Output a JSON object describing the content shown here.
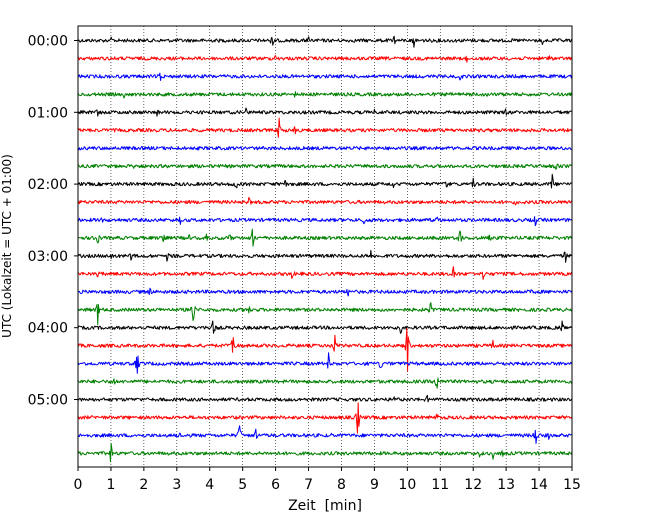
{
  "chart_data": {
    "type": "line",
    "title": "",
    "xlabel": "Zeit  [min]",
    "ylabel": "UTC (Lokalzeit = UTC + 01:00)",
    "xlim": [
      0,
      15
    ],
    "x_ticks": [
      "0",
      "1",
      "2",
      "3",
      "4",
      "5",
      "6",
      "7",
      "8",
      "9",
      "10",
      "11",
      "12",
      "13",
      "14",
      "15"
    ],
    "y_tick_labels": [
      "00:00",
      "01:00",
      "02:00",
      "03:00",
      "04:00",
      "05:00"
    ],
    "grid": "vertical dotted at each minute",
    "trace_interval_min": 15,
    "trace_colors": [
      "#000000",
      "#ff0000",
      "#0000ff",
      "#008000"
    ],
    "series": [
      {
        "start": "00:00",
        "color": "#000000",
        "events": [
          [
            1.0,
            4
          ],
          [
            5.9,
            7
          ],
          [
            7.0,
            5
          ],
          [
            9.6,
            4
          ],
          [
            10.2,
            7
          ],
          [
            14.1,
            6
          ]
        ]
      },
      {
        "start": "00:15",
        "color": "#ff0000",
        "events": [
          [
            6.0,
            4
          ],
          [
            11.8,
            4
          ],
          [
            14.3,
            4
          ]
        ]
      },
      {
        "start": "00:30",
        "color": "#0000ff",
        "events": [
          [
            2.5,
            4
          ],
          [
            11.6,
            4
          ]
        ]
      },
      {
        "start": "00:45",
        "color": "#008000",
        "events": [
          [
            1.4,
            4
          ],
          [
            6.6,
            4
          ],
          [
            12.4,
            4
          ]
        ]
      },
      {
        "start": "01:00",
        "color": "#000000",
        "events": [
          [
            0.6,
            4
          ],
          [
            2.4,
            4
          ],
          [
            5.1,
            4
          ],
          [
            9.0,
            4
          ],
          [
            13.0,
            4
          ]
        ]
      },
      {
        "start": "01:15",
        "color": "#ff0000",
        "events": [
          [
            6.1,
            16
          ],
          [
            6.6,
            5
          ]
        ]
      },
      {
        "start": "01:30",
        "color": "#0000ff",
        "events": []
      },
      {
        "start": "01:45",
        "color": "#008000",
        "events": [
          [
            1.7,
            4
          ],
          [
            14.5,
            4
          ]
        ]
      },
      {
        "start": "02:00",
        "color": "#000000",
        "events": [
          [
            4.8,
            7
          ],
          [
            6.3,
            5
          ],
          [
            9.6,
            5
          ],
          [
            11.2,
            6
          ],
          [
            12.0,
            6
          ],
          [
            14.4,
            11
          ]
        ]
      },
      {
        "start": "02:15",
        "color": "#ff0000",
        "events": [
          [
            5.2,
            7
          ],
          [
            13.3,
            4
          ]
        ]
      },
      {
        "start": "02:30",
        "color": "#0000ff",
        "events": [
          [
            0.7,
            4
          ],
          [
            3.1,
            4
          ],
          [
            6.4,
            4
          ],
          [
            8.7,
            5
          ],
          [
            10.9,
            8
          ],
          [
            13.9,
            9
          ]
        ]
      },
      {
        "start": "02:45",
        "color": "#008000",
        "events": [
          [
            0.6,
            6
          ],
          [
            2.6,
            4
          ],
          [
            3.4,
            5
          ],
          [
            3.9,
            4
          ],
          [
            4.6,
            5
          ],
          [
            5.3,
            14
          ],
          [
            8.9,
            4
          ],
          [
            10.8,
            4
          ],
          [
            11.6,
            11
          ],
          [
            12.5,
            4
          ],
          [
            13.6,
            4
          ]
        ]
      },
      {
        "start": "03:00",
        "color": "#000000",
        "events": [
          [
            1.0,
            4
          ],
          [
            1.6,
            7
          ],
          [
            2.7,
            5
          ],
          [
            8.9,
            8
          ],
          [
            14.8,
            8
          ]
        ]
      },
      {
        "start": "03:15",
        "color": "#ff0000",
        "events": [
          [
            0.6,
            4
          ],
          [
            6.5,
            10
          ],
          [
            11.4,
            11
          ],
          [
            12.3,
            8
          ]
        ]
      },
      {
        "start": "03:30",
        "color": "#0000ff",
        "events": [
          [
            2.2,
            6
          ],
          [
            8.2,
            7
          ],
          [
            13.7,
            4
          ]
        ]
      },
      {
        "start": "03:45",
        "color": "#008000",
        "events": [
          [
            0.6,
            14
          ],
          [
            3.5,
            16
          ],
          [
            5.2,
            6
          ],
          [
            10.7,
            12
          ]
        ]
      },
      {
        "start": "04:00",
        "color": "#000000",
        "events": [
          [
            4.1,
            14
          ],
          [
            9.8,
            8
          ],
          [
            14.7,
            9
          ]
        ]
      },
      {
        "start": "04:15",
        "color": "#ff0000",
        "events": [
          [
            4.7,
            13
          ],
          [
            7.8,
            12
          ],
          [
            10.0,
            32
          ],
          [
            12.6,
            4
          ]
        ]
      },
      {
        "start": "04:30",
        "color": "#0000ff",
        "events": [
          [
            1.8,
            18
          ],
          [
            7.6,
            15
          ],
          [
            9.2,
            8
          ]
        ]
      },
      {
        "start": "04:45",
        "color": "#008000",
        "events": [
          [
            1.1,
            7
          ],
          [
            10.9,
            10
          ]
        ]
      },
      {
        "start": "05:00",
        "color": "#000000",
        "events": [
          [
            2.6,
            4
          ],
          [
            9.6,
            4
          ],
          [
            10.6,
            4
          ]
        ]
      },
      {
        "start": "05:15",
        "color": "#ff0000",
        "events": [
          [
            8.5,
            30
          ],
          [
            10.9,
            4
          ]
        ]
      },
      {
        "start": "05:30",
        "color": "#0000ff",
        "events": [
          [
            3.1,
            4
          ],
          [
            4.9,
            18
          ],
          [
            5.4,
            6
          ],
          [
            7.7,
            4
          ],
          [
            13.9,
            12
          ],
          [
            14.3,
            4
          ]
        ]
      },
      {
        "start": "05:45",
        "color": "#008000",
        "events": [
          [
            1.0,
            22
          ],
          [
            12.2,
            5
          ],
          [
            12.6,
            6
          ],
          [
            12.9,
            5
          ]
        ]
      }
    ]
  }
}
